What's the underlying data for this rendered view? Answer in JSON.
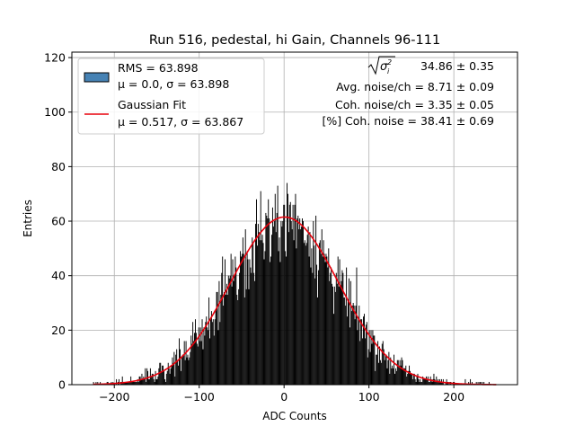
{
  "chart_data": {
    "type": "histogram",
    "title": "Run 516, pedestal, hi Gain, Channels 96-111",
    "xlabel": "ADC Counts",
    "ylabel": "Entries",
    "xlim": [
      -250,
      275
    ],
    "ylim": [
      0,
      122
    ],
    "xticks": [
      "−200",
      "−100",
      "0",
      "100",
      "200"
    ],
    "xtick_values": [
      -200,
      -100,
      0,
      100,
      200
    ],
    "yticks": [
      "0",
      "20",
      "40",
      "60",
      "80",
      "100",
      "120"
    ],
    "ytick_values": [
      0,
      20,
      40,
      60,
      80,
      100,
      120
    ],
    "grid": true,
    "histogram": {
      "range": [
        -225,
        250
      ],
      "mean": 0.0,
      "sigma": 63.898,
      "color": "#000000",
      "legend_color": "#4682b4"
    },
    "fit": {
      "mean": 0.517,
      "sigma": 63.867,
      "amplitude": 61.5,
      "color": "#e8000b"
    },
    "legend": {
      "position": "upper-left",
      "entries": [
        {
          "line1": "RMS = 63.898",
          "line2": "μ = 0.0, σ = 63.898"
        },
        {
          "line1": "Gaussian Fit",
          "line2": "μ = 0.517, σ = 63.867"
        }
      ]
    },
    "annotations": [
      "34.86 ± 0.35",
      "Avg. noise/ch = 8.71 ± 0.09",
      "Coh. noise/ch = 3.35 ± 0.05",
      "[%] Coh. noise = 38.41 ± 0.69"
    ]
  }
}
